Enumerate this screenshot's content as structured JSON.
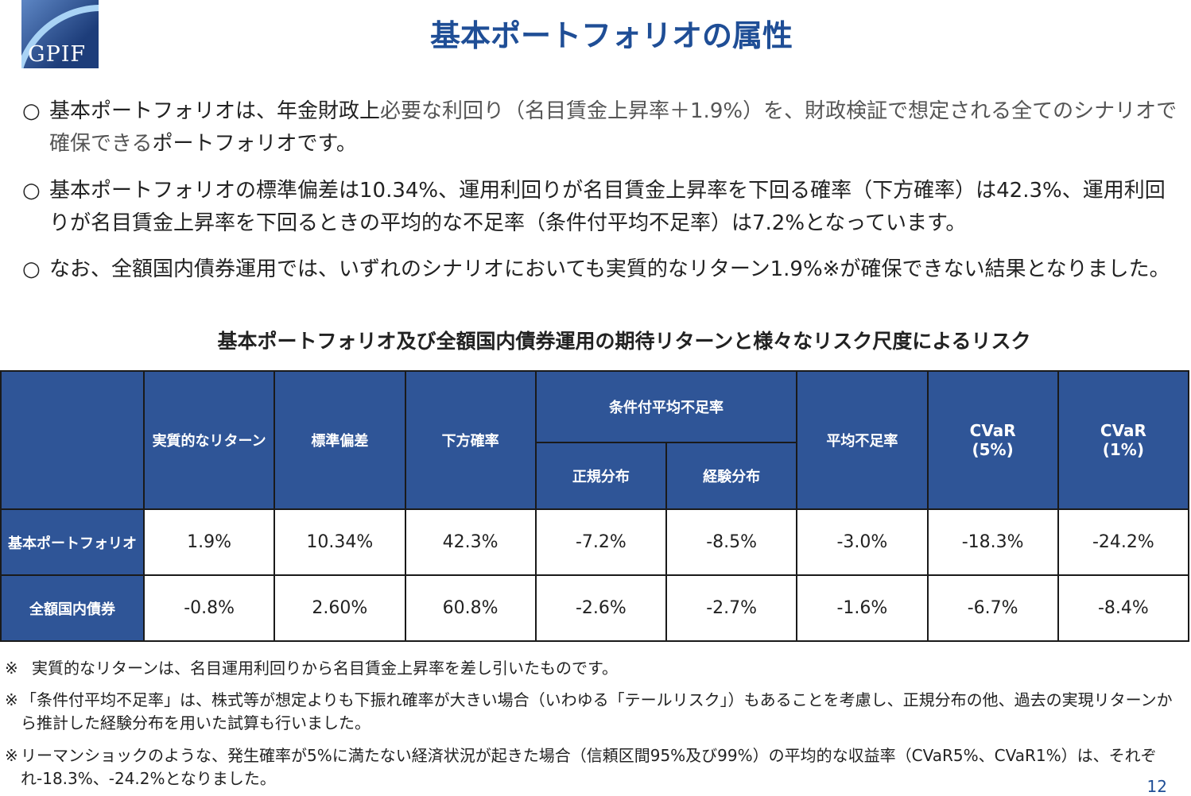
{
  "logo": {
    "text": "GPIF"
  },
  "title": "基本ポートフォリオの属性",
  "bullets": [
    {
      "mark": "○",
      "parts": [
        "基本ポートフォリオは、年金財政上",
        "必要な利回り（名目賃金上昇率＋1.9%）を、財政検証で想定される全てのシナリオで確保できる",
        "ポートフォリオです。"
      ]
    },
    {
      "mark": "○",
      "text": "基本ポートフォリオの標準偏差は10.34%、運用利回りが名目賃金上昇率を下回る確率（下方確率）は42.3%、運用利回りが名目賃金上昇率を下回るときの平均的な不足率（条件付平均不足率）は7.2%となっています。"
    },
    {
      "mark": "○",
      "text": "なお、全額国内債券運用では、いずれのシナリオにおいても実質的なリターン1.9%※が確保できない結果となりました。"
    }
  ],
  "table": {
    "caption": "基本ポートフォリオ及び全額国内債券運用の期待リターンと様々なリスク尺度によるリスク",
    "headers": {
      "real_return": "実質的なリターン",
      "std": "標準偏差",
      "downside": "下方確率",
      "cond": "条件付平均不足率",
      "normal": "正規分布",
      "empirical": "経験分布",
      "avg_short": "平均不足率",
      "cvar5": "CVaR (5%)",
      "cvar1": "CVaR (1%)"
    },
    "rows": [
      {
        "label": "基本ポートフォリオ",
        "values": [
          "1.9%",
          "10.34%",
          "42.3%",
          "-7.2%",
          "-8.5%",
          "-3.0%",
          "-18.3%",
          "-24.2%"
        ]
      },
      {
        "label": "全額国内債券",
        "values": [
          "-0.8%",
          "2.60%",
          "60.8%",
          "-2.6%",
          "-2.7%",
          "-1.6%",
          "-6.7%",
          "-8.4%"
        ]
      }
    ]
  },
  "notes": [
    {
      "mark": "※",
      "text": "実質的なリターンは、名目運用利回りから名目賃金上昇率を差し引いたものです。"
    },
    {
      "mark": "※",
      "text": "「条件付平均不足率」は、株式等が想定よりも下振れ確率が大きい場合（いわゆる「テールリスク」）もあることを考慮し、正規分布の他、過去の実現リターンから推計した経験分布を用いた試算も行いました。"
    },
    {
      "mark": "※",
      "text": "リーマンショックのような、発生確率が5%に満たない経済状況が起きた場合（信頼区間95%及び99%）の平均的な収益率（CVaR5%、CVaR1%）は、それぞれ-18.3%、-24.2%となりました。"
    }
  ],
  "page_number": "12"
}
